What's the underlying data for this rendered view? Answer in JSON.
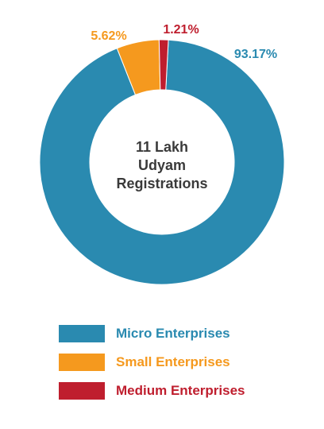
{
  "chart_data": {
    "type": "pie",
    "donut": true,
    "center_text": [
      "11 Lakh",
      "Udyam",
      "Registrations"
    ],
    "slices": [
      {
        "name": "Micro Enterprises",
        "label": "93.17%",
        "value": 93.17,
        "color": "#2a8ab0"
      },
      {
        "name": "Small Enterprises",
        "label": "5.62%",
        "value": 5.62,
        "color": "#f5991e"
      },
      {
        "name": "Medium Enterprises",
        "label": "1.21%",
        "value": 1.21,
        "color": "#bf1e2e"
      }
    ],
    "legend_position": "bottom"
  }
}
